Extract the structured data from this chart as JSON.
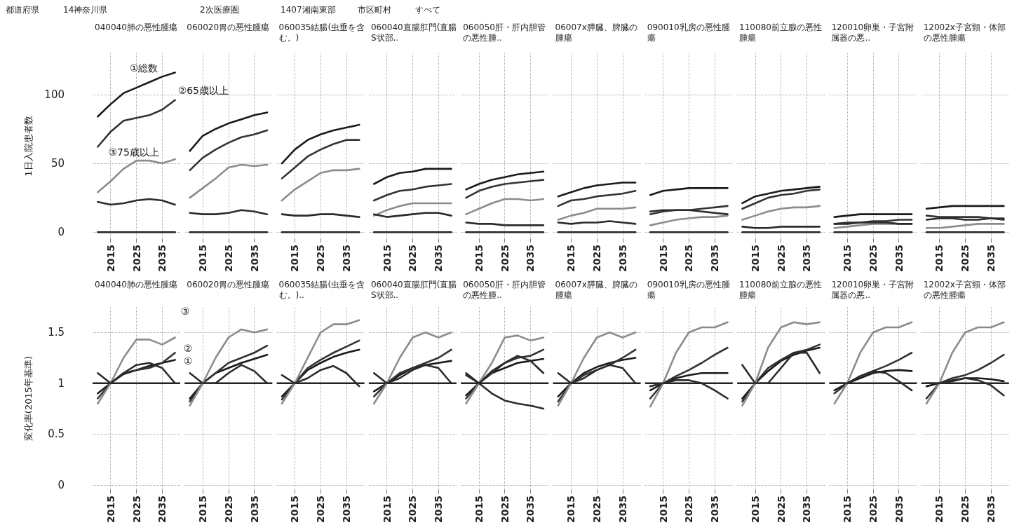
{
  "chart_data": [
    {
      "type": "line",
      "title": "040040肺の悪性腫瘍",
      "ylabel": "1日入院患者数",
      "annotations": [
        "都道府県",
        "14神奈川県",
        "2次医療圏",
        "1407湘南東部",
        "市区町村",
        "すべて"
      ],
      "x": [
        2010,
        2015,
        2020,
        2025,
        2030,
        2035,
        2040
      ],
      "xlim": [
        2008,
        2042
      ],
      "xticks": [
        2015,
        2025,
        2035
      ],
      "ylim": [
        -5,
        130
      ],
      "yticks": [
        0,
        50,
        100
      ],
      "grid": true,
      "marker": "none",
      "line_style": "solid",
      "series": [
        {
          "color": "#222222",
          "values": [
            0,
            0,
            0,
            0,
            0,
            0,
            0
          ]
        },
        {
          "name": "①総数",
          "color": "#1a1a1a",
          "values": [
            84,
            93,
            101,
            105,
            109,
            113,
            116
          ]
        },
        {
          "name": "②65歳以上",
          "color": "#333333",
          "values": [
            62,
            73,
            81,
            83,
            85,
            89,
            96
          ]
        },
        {
          "name": "③75歳以上",
          "color": "#8c8c8c",
          "values": [
            29,
            37,
            46,
            52,
            52,
            50,
            53
          ]
        },
        {
          "color": "#2b2b2b",
          "values": [
            22,
            20,
            21,
            23,
            24,
            23,
            20
          ]
        }
      ]
    },
    {
      "type": "line",
      "title": "060020胃の悪性腫瘍",
      "x": [
        2010,
        2015,
        2020,
        2025,
        2030,
        2035,
        2040
      ],
      "xlim": [
        2008,
        2042
      ],
      "xticks": [
        2015,
        2025,
        2035
      ],
      "ylim": [
        -5,
        130
      ],
      "yticks": [
        0,
        50,
        100
      ],
      "tick_labels": "x",
      "grid": true,
      "marker": "none",
      "line_style": "solid",
      "series": [
        {
          "color": "#222222",
          "values": [
            0,
            0,
            0,
            0,
            0,
            0,
            0
          ]
        },
        {
          "color": "#1a1a1a",
          "values": [
            59,
            70,
            75,
            79,
            82,
            85,
            87
          ]
        },
        {
          "color": "#333333",
          "values": [
            45,
            54,
            60,
            65,
            69,
            71,
            74
          ]
        },
        {
          "color": "#8c8c8c",
          "values": [
            25,
            32,
            39,
            47,
            49,
            48,
            49
          ]
        },
        {
          "color": "#2b2b2b",
          "values": [
            14,
            13,
            13,
            14,
            16,
            15,
            13
          ]
        }
      ]
    },
    {
      "type": "line",
      "title": "060035結腸(虫垂を含む。)",
      "x": [
        2010,
        2015,
        2020,
        2025,
        2030,
        2035,
        2040
      ],
      "xlim": [
        2008,
        2042
      ],
      "xticks": [
        2015,
        2025,
        2035
      ],
      "ylim": [
        -5,
        130
      ],
      "yticks": [
        0,
        50,
        100
      ],
      "tick_labels": "x",
      "grid": true,
      "marker": "none",
      "line_style": "solid",
      "series": [
        {
          "color": "#222222",
          "values": [
            0,
            0,
            0,
            0,
            0,
            0,
            0
          ]
        },
        {
          "color": "#1a1a1a",
          "values": [
            50,
            60,
            67,
            71,
            74,
            76,
            78
          ]
        },
        {
          "color": "#333333",
          "values": [
            39,
            47,
            55,
            60,
            64,
            67,
            67
          ]
        },
        {
          "color": "#8c8c8c",
          "values": [
            23,
            31,
            37,
            43,
            45,
            45,
            46
          ]
        },
        {
          "color": "#2b2b2b",
          "values": [
            13,
            12,
            12,
            13,
            13,
            12,
            11
          ]
        }
      ]
    },
    {
      "type": "line",
      "title": "060040直腸肛門(直腸S状部..",
      "x": [
        2010,
        2015,
        2020,
        2025,
        2030,
        2035,
        2040
      ],
      "xlim": [
        2008,
        2042
      ],
      "xticks": [
        2015,
        2025,
        2035
      ],
      "ylim": [
        -5,
        130
      ],
      "yticks": [
        0,
        50,
        100
      ],
      "tick_labels": "x",
      "grid": true,
      "marker": "none",
      "line_style": "solid",
      "series": [
        {
          "color": "#222222",
          "values": [
            0,
            0,
            0,
            0,
            0,
            0,
            0
          ]
        },
        {
          "color": "#1a1a1a",
          "values": [
            35,
            40,
            43,
            44,
            46,
            46,
            46
          ]
        },
        {
          "color": "#333333",
          "values": [
            23,
            27,
            30,
            31,
            33,
            34,
            35
          ]
        },
        {
          "color": "#8c8c8c",
          "values": [
            12,
            16,
            19,
            21,
            21,
            21,
            21
          ]
        },
        {
          "color": "#2b2b2b",
          "values": [
            13,
            11,
            12,
            13,
            14,
            14,
            12
          ]
        }
      ]
    },
    {
      "type": "line",
      "title": "060050肝・肝内胆管の悪性腫..",
      "x": [
        2010,
        2015,
        2020,
        2025,
        2030,
        2035,
        2040
      ],
      "xlim": [
        2008,
        2042
      ],
      "xticks": [
        2015,
        2025,
        2035
      ],
      "ylim": [
        -5,
        130
      ],
      "yticks": [
        0,
        50,
        100
      ],
      "tick_labels": "x",
      "grid": true,
      "marker": "none",
      "line_style": "solid",
      "series": [
        {
          "color": "#222222",
          "values": [
            0,
            0,
            0,
            0,
            0,
            0,
            0
          ]
        },
        {
          "color": "#1a1a1a",
          "values": [
            31,
            35,
            38,
            40,
            42,
            43,
            44
          ]
        },
        {
          "color": "#333333",
          "values": [
            25,
            30,
            33,
            35,
            36,
            37,
            38
          ]
        },
        {
          "color": "#8c8c8c",
          "values": [
            13,
            17,
            21,
            24,
            24,
            23,
            24
          ]
        },
        {
          "color": "#2b2b2b",
          "values": [
            7,
            6,
            6,
            5,
            5,
            5,
            5
          ]
        }
      ]
    },
    {
      "type": "line",
      "title": "06007x膵臓、脾臓の腫瘍",
      "x": [
        2010,
        2015,
        2020,
        2025,
        2030,
        2035,
        2040
      ],
      "xlim": [
        2008,
        2042
      ],
      "xticks": [
        2015,
        2025,
        2035
      ],
      "ylim": [
        -5,
        130
      ],
      "yticks": [
        0,
        50,
        100
      ],
      "tick_labels": "x",
      "grid": true,
      "marker": "none",
      "line_style": "solid",
      "series": [
        {
          "color": "#222222",
          "values": [
            0,
            0,
            0,
            0,
            0,
            0,
            0
          ]
        },
        {
          "color": "#1a1a1a",
          "values": [
            26,
            29,
            32,
            34,
            35,
            36,
            36
          ]
        },
        {
          "color": "#333333",
          "values": [
            19,
            23,
            24,
            26,
            27,
            28,
            30
          ]
        },
        {
          "color": "#8c8c8c",
          "values": [
            9,
            12,
            14,
            17,
            17,
            17,
            18
          ]
        },
        {
          "color": "#2b2b2b",
          "values": [
            7,
            6,
            7,
            7,
            8,
            7,
            6
          ]
        }
      ]
    },
    {
      "type": "line",
      "title": "090010乳房の悪性腫瘍",
      "x": [
        2010,
        2015,
        2020,
        2025,
        2030,
        2035,
        2040
      ],
      "xlim": [
        2008,
        2042
      ],
      "xticks": [
        2015,
        2025,
        2035
      ],
      "ylim": [
        -5,
        130
      ],
      "yticks": [
        0,
        50,
        100
      ],
      "tick_labels": "x",
      "grid": true,
      "marker": "none",
      "line_style": "solid",
      "series": [
        {
          "color": "#222222",
          "values": [
            0,
            0,
            0,
            0,
            0,
            0,
            0
          ]
        },
        {
          "color": "#1a1a1a",
          "values": [
            27,
            30,
            31,
            32,
            32,
            32,
            32
          ]
        },
        {
          "color": "#333333",
          "values": [
            13,
            15,
            16,
            16,
            17,
            18,
            19
          ]
        },
        {
          "color": "#8c8c8c",
          "values": [
            5,
            7,
            9,
            10,
            11,
            11,
            12
          ]
        },
        {
          "color": "#2b2b2b",
          "values": [
            15,
            16,
            16,
            16,
            15,
            14,
            13
          ]
        }
      ]
    },
    {
      "type": "line",
      "title": "110080前立腺の悪性腫瘍",
      "x": [
        2010,
        2015,
        2020,
        2025,
        2030,
        2035,
        2040
      ],
      "xlim": [
        2008,
        2042
      ],
      "xticks": [
        2015,
        2025,
        2035
      ],
      "ylim": [
        -5,
        130
      ],
      "yticks": [
        0,
        50,
        100
      ],
      "tick_labels": "x",
      "grid": true,
      "marker": "none",
      "line_style": "solid",
      "series": [
        {
          "color": "#222222",
          "values": [
            0,
            0,
            0,
            0,
            0,
            0,
            0
          ]
        },
        {
          "color": "#1a1a1a",
          "values": [
            21,
            26,
            28,
            30,
            31,
            32,
            33
          ]
        },
        {
          "color": "#333333",
          "values": [
            17,
            21,
            25,
            27,
            28,
            30,
            31
          ]
        },
        {
          "color": "#8c8c8c",
          "values": [
            9,
            12,
            15,
            17,
            18,
            18,
            19
          ]
        },
        {
          "color": "#2b2b2b",
          "values": [
            4,
            3,
            3,
            4,
            4,
            4,
            4
          ]
        }
      ]
    },
    {
      "type": "line",
      "title": "120010卵巣・子宮附属器の悪..",
      "x": [
        2010,
        2015,
        2020,
        2025,
        2030,
        2035,
        2040
      ],
      "xlim": [
        2008,
        2042
      ],
      "xticks": [
        2015,
        2025,
        2035
      ],
      "ylim": [
        -5,
        130
      ],
      "yticks": [
        0,
        50,
        100
      ],
      "tick_labels": "x",
      "grid": true,
      "marker": "none",
      "line_style": "solid",
      "series": [
        {
          "color": "#222222",
          "values": [
            0,
            0,
            0,
            0,
            0,
            0,
            0
          ]
        },
        {
          "color": "#1a1a1a",
          "values": [
            11,
            12,
            13,
            13,
            13,
            13,
            13
          ]
        },
        {
          "color": "#333333",
          "values": [
            6,
            7,
            7,
            8,
            8,
            9,
            9
          ]
        },
        {
          "color": "#8c8c8c",
          "values": [
            3,
            4,
            5,
            6,
            6,
            6,
            6
          ]
        },
        {
          "color": "#2b2b2b",
          "values": [
            6,
            6,
            7,
            7,
            7,
            6,
            6
          ]
        }
      ]
    },
    {
      "type": "line",
      "title": "12002x子宮頸・体部の悪性腫瘍",
      "x": [
        2010,
        2015,
        2020,
        2025,
        2030,
        2035,
        2040
      ],
      "xlim": [
        2008,
        2042
      ],
      "xticks": [
        2015,
        2025,
        2035
      ],
      "ylim": [
        -5,
        130
      ],
      "yticks": [
        0,
        50,
        100
      ],
      "tick_labels": "x",
      "grid": true,
      "marker": "none",
      "line_style": "solid",
      "series": [
        {
          "color": "#222222",
          "values": [
            0,
            0,
            0,
            0,
            0,
            0,
            0
          ]
        },
        {
          "color": "#1a1a1a",
          "values": [
            17,
            18,
            19,
            19,
            19,
            19,
            19
          ]
        },
        {
          "color": "#333333",
          "values": [
            12,
            11,
            11,
            11,
            11,
            10,
            10
          ]
        },
        {
          "color": "#8c8c8c",
          "values": [
            3,
            3,
            4,
            5,
            6,
            6,
            6
          ]
        },
        {
          "color": "#2b2b2b",
          "values": [
            9,
            10,
            10,
            9,
            9,
            10,
            9
          ]
        }
      ]
    },
    {
      "type": "line",
      "title": "040040肺の悪性腫瘍",
      "ylabel": "変化率(2015年基準)",
      "x": [
        2010,
        2015,
        2020,
        2025,
        2030,
        2035,
        2040
      ],
      "xlim": [
        2008,
        2042
      ],
      "xticks": [
        2015,
        2025,
        2035
      ],
      "ylim": [
        -0.05,
        1.75
      ],
      "yticks": [
        0,
        0.5,
        1,
        1.5
      ],
      "grid": true,
      "marker": "none",
      "line_style": "solid",
      "ref_lines": [
        {
          "axis": "y",
          "value": 1,
          "color": "#222222"
        }
      ],
      "series": [
        {
          "name": "①",
          "color": "#1a1a1a",
          "values": [
            0.9,
            1,
            1.09,
            1.13,
            1.17,
            1.2,
            1.23
          ]
        },
        {
          "name": "②",
          "color": "#333333",
          "values": [
            0.85,
            1,
            1.1,
            1.13,
            1.15,
            1.2,
            1.3
          ]
        },
        {
          "name": "③",
          "color": "#8c8c8c",
          "values": [
            0.8,
            1,
            1.25,
            1.43,
            1.43,
            1.38,
            1.45
          ]
        },
        {
          "color": "#2b2b2b",
          "values": [
            1.1,
            1,
            1.1,
            1.18,
            1.2,
            1.15,
            1
          ]
        }
      ]
    },
    {
      "type": "line",
      "title": "060020胃の悪性腫瘍",
      "x": [
        2010,
        2015,
        2020,
        2025,
        2030,
        2035,
        2040
      ],
      "xlim": [
        2008,
        2042
      ],
      "xticks": [
        2015,
        2025,
        2035
      ],
      "ylim": [
        -0.05,
        1.75
      ],
      "yticks": [
        0,
        0.5,
        1,
        1.5
      ],
      "tick_labels": "x",
      "grid": true,
      "marker": "none",
      "line_style": "solid",
      "ref_lines": [
        {
          "axis": "y",
          "value": 1,
          "color": "#222222"
        }
      ],
      "series": [
        {
          "color": "#1a1a1a",
          "values": [
            0.85,
            1,
            1.1,
            1.15,
            1.2,
            1.24,
            1.28
          ]
        },
        {
          "color": "#333333",
          "values": [
            0.82,
            1,
            1.1,
            1.2,
            1.25,
            1.3,
            1.37
          ]
        },
        {
          "color": "#8c8c8c",
          "values": [
            0.78,
            1,
            1.25,
            1.45,
            1.53,
            1.5,
            1.53
          ]
        },
        {
          "color": "#2b2b2b",
          "values": [
            1.1,
            1,
            1,
            1.1,
            1.18,
            1.12,
            1
          ]
        }
      ]
    },
    {
      "type": "line",
      "title": "060035結腸(虫垂を含む。)..",
      "x": [
        2010,
        2015,
        2020,
        2025,
        2030,
        2035,
        2040
      ],
      "xlim": [
        2008,
        2042
      ],
      "xticks": [
        2015,
        2025,
        2035
      ],
      "ylim": [
        -0.05,
        1.75
      ],
      "yticks": [
        0,
        0.5,
        1,
        1.5
      ],
      "tick_labels": "x",
      "grid": true,
      "marker": "none",
      "line_style": "solid",
      "ref_lines": [
        {
          "axis": "y",
          "value": 1,
          "color": "#222222"
        }
      ],
      "series": [
        {
          "color": "#1a1a1a",
          "values": [
            0.87,
            1,
            1.13,
            1.2,
            1.26,
            1.3,
            1.33
          ]
        },
        {
          "color": "#333333",
          "values": [
            0.84,
            1,
            1.15,
            1.23,
            1.3,
            1.36,
            1.42
          ]
        },
        {
          "color": "#8c8c8c",
          "values": [
            0.8,
            1,
            1.25,
            1.5,
            1.58,
            1.58,
            1.62
          ]
        },
        {
          "color": "#2b2b2b",
          "values": [
            1.08,
            1,
            1.05,
            1.13,
            1.17,
            1.1,
            0.97
          ]
        }
      ]
    },
    {
      "type": "line",
      "title": "060040直腸肛門(直腸S状部..",
      "x": [
        2010,
        2015,
        2020,
        2025,
        2030,
        2035,
        2040
      ],
      "xlim": [
        2008,
        2042
      ],
      "xticks": [
        2015,
        2025,
        2035
      ],
      "ylim": [
        -0.05,
        1.75
      ],
      "yticks": [
        0,
        0.5,
        1,
        1.5
      ],
      "tick_labels": "x",
      "grid": true,
      "marker": "none",
      "line_style": "solid",
      "ref_lines": [
        {
          "axis": "y",
          "value": 1,
          "color": "#222222"
        }
      ],
      "series": [
        {
          "color": "#1a1a1a",
          "values": [
            0.92,
            1,
            1.08,
            1.15,
            1.18,
            1.2,
            1.22
          ]
        },
        {
          "color": "#333333",
          "values": [
            0.87,
            1,
            1.1,
            1.15,
            1.2,
            1.25,
            1.33
          ]
        },
        {
          "color": "#8c8c8c",
          "values": [
            0.8,
            1,
            1.25,
            1.45,
            1.5,
            1.45,
            1.5
          ]
        },
        {
          "color": "#2b2b2b",
          "values": [
            1.1,
            1,
            1.05,
            1.13,
            1.18,
            1.15,
            1
          ]
        }
      ]
    },
    {
      "type": "line",
      "title": "060050肝・肝内胆管の悪性腫..",
      "x": [
        2010,
        2015,
        2020,
        2025,
        2030,
        2035,
        2040
      ],
      "xlim": [
        2008,
        2042
      ],
      "xticks": [
        2015,
        2025,
        2035
      ],
      "ylim": [
        -0.05,
        1.75
      ],
      "yticks": [
        0,
        0.5,
        1,
        1.5
      ],
      "tick_labels": "x",
      "grid": true,
      "marker": "none",
      "line_style": "solid",
      "ref_lines": [
        {
          "axis": "y",
          "value": 1,
          "color": "#222222"
        }
      ],
      "series": [
        {
          "color": "#1a1a1a",
          "values": [
            0.88,
            1,
            1.1,
            1.15,
            1.2,
            1.22,
            1.24
          ]
        },
        {
          "color": "#333333",
          "values": [
            0.85,
            1,
            1.12,
            1.2,
            1.25,
            1.27,
            1.33
          ]
        },
        {
          "color": "#8c8c8c",
          "values": [
            0.8,
            1,
            1.2,
            1.45,
            1.47,
            1.42,
            1.45
          ]
        },
        {
          "color": "#2b2b2b",
          "values": [
            1.1,
            1,
            1.1,
            1.2,
            1.27,
            1.22,
            1.1
          ]
        },
        {
          "color": "#2b2b2b",
          "values": [
            1.08,
            1,
            0.9,
            0.83,
            0.8,
            0.78,
            0.75
          ]
        }
      ]
    },
    {
      "type": "line",
      "title": "06007x膵臓、脾臓の腫瘍",
      "x": [
        2010,
        2015,
        2020,
        2025,
        2030,
        2035,
        2040
      ],
      "xlim": [
        2008,
        2042
      ],
      "xticks": [
        2015,
        2025,
        2035
      ],
      "ylim": [
        -0.05,
        1.75
      ],
      "yticks": [
        0,
        0.5,
        1,
        1.5
      ],
      "tick_labels": "x",
      "grid": true,
      "marker": "none",
      "line_style": "solid",
      "ref_lines": [
        {
          "axis": "y",
          "value": 1,
          "color": "#222222"
        }
      ],
      "series": [
        {
          "color": "#1a1a1a",
          "values": [
            0.87,
            1,
            1.1,
            1.16,
            1.2,
            1.23,
            1.25
          ]
        },
        {
          "color": "#333333",
          "values": [
            0.82,
            1,
            1.08,
            1.13,
            1.18,
            1.25,
            1.33
          ]
        },
        {
          "color": "#8c8c8c",
          "values": [
            0.78,
            1,
            1.25,
            1.45,
            1.5,
            1.45,
            1.5
          ]
        },
        {
          "color": "#2b2b2b",
          "values": [
            1.1,
            1,
            1.05,
            1.13,
            1.18,
            1.15,
            1
          ]
        }
      ]
    },
    {
      "type": "line",
      "title": "090010乳房の悪性腫瘍",
      "x": [
        2010,
        2015,
        2020,
        2025,
        2030,
        2035,
        2040
      ],
      "xlim": [
        2008,
        2042
      ],
      "xticks": [
        2015,
        2025,
        2035
      ],
      "ylim": [
        -0.05,
        1.75
      ],
      "yticks": [
        0,
        0.5,
        1,
        1.5
      ],
      "tick_labels": "x",
      "grid": true,
      "marker": "none",
      "line_style": "solid",
      "ref_lines": [
        {
          "axis": "y",
          "value": 1,
          "color": "#222222"
        }
      ],
      "series": [
        {
          "color": "#1a1a1a",
          "values": [
            0.93,
            1,
            1.05,
            1.08,
            1.1,
            1.1,
            1.1
          ]
        },
        {
          "color": "#333333",
          "values": [
            0.85,
            1,
            1.07,
            1.13,
            1.2,
            1.28,
            1.35
          ]
        },
        {
          "color": "#8c8c8c",
          "values": [
            0.77,
            1,
            1.3,
            1.5,
            1.55,
            1.55,
            1.6
          ]
        },
        {
          "color": "#2b2b2b",
          "values": [
            0.97,
            1,
            1.03,
            1.03,
            1,
            0.93,
            0.85
          ]
        }
      ]
    },
    {
      "type": "line",
      "title": "110080前立腺の悪性腫瘍",
      "x": [
        2010,
        2015,
        2020,
        2025,
        2030,
        2035,
        2040
      ],
      "xlim": [
        2008,
        2042
      ],
      "xticks": [
        2015,
        2025,
        2035
      ],
      "ylim": [
        -0.05,
        1.75
      ],
      "yticks": [
        0,
        0.5,
        1,
        1.5
      ],
      "tick_labels": "x",
      "grid": true,
      "marker": "none",
      "line_style": "solid",
      "ref_lines": [
        {
          "axis": "y",
          "value": 1,
          "color": "#222222"
        }
      ],
      "series": [
        {
          "color": "#1a1a1a",
          "values": [
            0.85,
            1,
            1.12,
            1.22,
            1.28,
            1.32,
            1.35
          ]
        },
        {
          "color": "#333333",
          "values": [
            0.82,
            1,
            1.15,
            1.23,
            1.3,
            1.33,
            1.38
          ]
        },
        {
          "color": "#8c8c8c",
          "values": [
            0.78,
            1,
            1.35,
            1.55,
            1.6,
            1.58,
            1.6
          ]
        },
        {
          "color": "#2b2b2b",
          "values": [
            1.18,
            1,
            1,
            1.15,
            1.3,
            1.3,
            1.1
          ]
        }
      ]
    },
    {
      "type": "line",
      "title": "120010卵巣・子宮附属器の悪..",
      "x": [
        2010,
        2015,
        2020,
        2025,
        2030,
        2035,
        2040
      ],
      "xlim": [
        2008,
        2042
      ],
      "xticks": [
        2015,
        2025,
        2035
      ],
      "ylim": [
        -0.05,
        1.75
      ],
      "yticks": [
        0,
        0.5,
        1,
        1.5
      ],
      "tick_labels": "x",
      "grid": true,
      "marker": "none",
      "line_style": "solid",
      "ref_lines": [
        {
          "axis": "y",
          "value": 1,
          "color": "#222222"
        }
      ],
      "series": [
        {
          "color": "#1a1a1a",
          "values": [
            0.93,
            1,
            1.05,
            1.1,
            1.12,
            1.13,
            1.12
          ]
        },
        {
          "color": "#333333",
          "values": [
            0.9,
            1,
            1.07,
            1.12,
            1.17,
            1.23,
            1.3
          ]
        },
        {
          "color": "#8c8c8c",
          "values": [
            0.8,
            1,
            1.3,
            1.5,
            1.55,
            1.55,
            1.6
          ]
        },
        {
          "color": "#2b2b2b",
          "values": [
            1,
            1,
            1.07,
            1.12,
            1.1,
            1.02,
            0.93
          ]
        }
      ]
    },
    {
      "type": "line",
      "title": "12002x子宮頸・体部の悪性腫瘍",
      "x": [
        2010,
        2015,
        2020,
        2025,
        2030,
        2035,
        2040
      ],
      "xlim": [
        2008,
        2042
      ],
      "xticks": [
        2015,
        2025,
        2035
      ],
      "ylim": [
        -0.05,
        1.75
      ],
      "yticks": [
        0,
        0.5,
        1,
        1.5
      ],
      "tick_labels": "x",
      "grid": true,
      "marker": "none",
      "line_style": "solid",
      "ref_lines": [
        {
          "axis": "y",
          "value": 1,
          "color": "#222222"
        }
      ],
      "series": [
        {
          "color": "#1a1a1a",
          "values": [
            0.97,
            1,
            1.03,
            1.05,
            1.05,
            1.04,
            1.02
          ]
        },
        {
          "color": "#333333",
          "values": [
            0.85,
            1,
            1.05,
            1.08,
            1.13,
            1.2,
            1.28
          ]
        },
        {
          "color": "#8c8c8c",
          "values": [
            0.8,
            1,
            1.3,
            1.5,
            1.55,
            1.55,
            1.6
          ]
        },
        {
          "color": "#2b2b2b",
          "values": [
            1,
            1,
            1.02,
            1.05,
            1.03,
            0.98,
            0.88
          ]
        }
      ]
    }
  ]
}
